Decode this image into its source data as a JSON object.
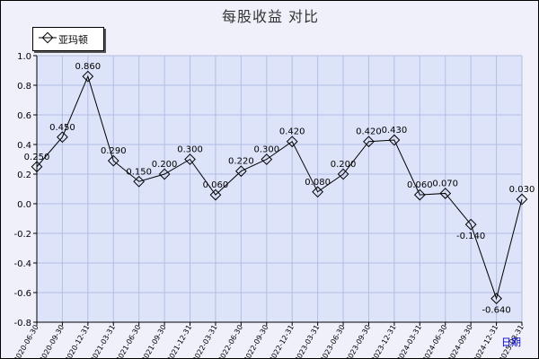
{
  "chart_data": {
    "type": "line",
    "title": "每股收益  对比",
    "xlabel": "日期",
    "ylabel": "",
    "ylim": [
      -0.8,
      1.0
    ],
    "yticks": [
      "1.0",
      "0.8",
      "0.6",
      "0.4",
      "0.2",
      "0.0",
      "-0.2",
      "-0.4",
      "-0.6",
      "-0.8"
    ],
    "grid": true,
    "legend": "top-left",
    "categories": [
      "2020-06-30",
      "2020-09-30",
      "2020-12-31",
      "2021-03-31",
      "2021-06-30",
      "2021-09-30",
      "2021-12-31",
      "2022-03-31",
      "2022-06-30",
      "2022-09-30",
      "2022-12-31",
      "2023-03-31",
      "2023-06-30",
      "2023-09-30",
      "2023-12-31",
      "2024-03-31",
      "2024-06-30",
      "2024-09-30",
      "2024-12-31",
      "2025-03-31"
    ],
    "series": [
      {
        "name": "亚玛顿",
        "values": [
          0.25,
          0.45,
          0.86,
          0.29,
          0.15,
          0.2,
          0.3,
          0.06,
          0.22,
          0.3,
          0.42,
          0.08,
          0.2,
          0.42,
          0.43,
          0.06,
          0.07,
          -0.14,
          -0.64,
          0.03
        ],
        "labels": [
          "0.250",
          "0.450",
          "0.860",
          "0.290",
          "0.150",
          "0.200",
          "0.300",
          "0.060",
          "0.220",
          "0.300",
          "0.420",
          "0.080",
          "0.200",
          "0.420",
          "0.430",
          "0.060",
          "0.070",
          "-0.140",
          "-0.640",
          "0.030"
        ]
      }
    ],
    "colors": {
      "plot_bg": "#dde3f8",
      "grid": "#b4bee6",
      "line": "#000000",
      "page_bg": "#f0f0fb",
      "axis_title": "#0000cc"
    }
  }
}
